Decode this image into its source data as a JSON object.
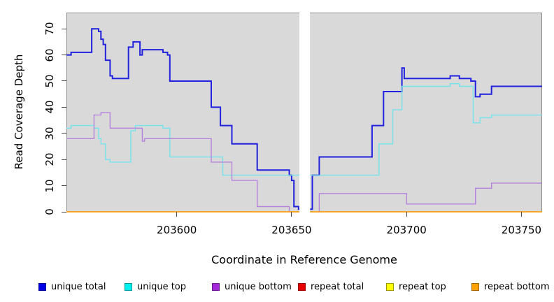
{
  "figure": {
    "xlabel": "Coordinate in Reference Genome",
    "ylabel": "Read Coverage Depth"
  },
  "legend": {
    "items": [
      {
        "label": "unique total",
        "color": "#0000E6",
        "border": "#000099"
      },
      {
        "label": "unique top",
        "color": "#00F0F0",
        "border": "#009999"
      },
      {
        "label": "unique bottom",
        "color": "#A228D8",
        "border": "#661A8C"
      },
      {
        "label": "repeat total",
        "color": "#E60000",
        "border": "#990000"
      },
      {
        "label": "repeat top",
        "color": "#FFFF00",
        "border": "#999900"
      },
      {
        "label": "repeat bottom",
        "color": "#FFA200",
        "border": "#996600"
      }
    ],
    "positions_x": [
      55,
      178,
      303,
      426,
      552,
      674
    ]
  },
  "chart_data": {
    "type": "line",
    "step": true,
    "title": "",
    "xlabel": "Coordinate in Reference Genome",
    "ylabel": "Read Coverage Depth",
    "xlim": [
      203552,
      203759
    ],
    "ylim": [
      0,
      76.2
    ],
    "x_ticks": [
      203600,
      203650,
      203700,
      203750
    ],
    "y_ticks": [
      0,
      10,
      20,
      30,
      40,
      50,
      60,
      70
    ],
    "grid": false,
    "plot_bg": "#D9D9D9",
    "border_color": "#8C8C8C",
    "gap_x": [
      203653.4,
      203658
    ],
    "legend_position": "bottom",
    "series": [
      {
        "name": "unique total",
        "color": "#2121DE",
        "width": 2,
        "segments": [
          {
            "end": 203653.4,
            "points": [
              [
                203552,
                60
              ],
              [
                203554,
                61
              ],
              [
                203563,
                70
              ],
              [
                203566,
                69
              ],
              [
                203567,
                66
              ],
              [
                203568,
                64
              ],
              [
                203569,
                58
              ],
              [
                203571,
                52
              ],
              [
                203572,
                51
              ],
              [
                203579,
                63
              ],
              [
                203581,
                65
              ],
              [
                203584,
                60
              ],
              [
                203585,
                62
              ],
              [
                203594,
                61
              ],
              [
                203596,
                60
              ],
              [
                203597,
                50
              ],
              [
                203615,
                40
              ],
              [
                203619,
                33
              ],
              [
                203624,
                26
              ],
              [
                203635,
                16
              ],
              [
                203649,
                14
              ],
              [
                203650,
                12
              ],
              [
                203651,
                2
              ],
              [
                203653,
                1
              ]
            ]
          },
          {
            "end": 203759,
            "points": [
              [
                203658,
                1
              ],
              [
                203659,
                14
              ],
              [
                203662,
                21
              ],
              [
                203685,
                33
              ],
              [
                203690,
                46
              ],
              [
                203698,
                55
              ],
              [
                203699,
                51
              ],
              [
                203719,
                52
              ],
              [
                203723,
                51
              ],
              [
                203728,
                50
              ],
              [
                203730,
                44
              ],
              [
                203732,
                45
              ],
              [
                203737,
                48
              ]
            ]
          }
        ]
      },
      {
        "name": "unique top",
        "color": "#74E3EA",
        "width": 1.4,
        "segments": [
          {
            "end": 203653.4,
            "points": [
              [
                203552,
                32
              ],
              [
                203554,
                33
              ],
              [
                203564,
                32
              ],
              [
                203566,
                28
              ],
              [
                203567,
                26
              ],
              [
                203569,
                20
              ],
              [
                203571,
                19
              ],
              [
                203580,
                31
              ],
              [
                203582,
                33
              ],
              [
                203594,
                32
              ],
              [
                203597,
                21
              ],
              [
                203620,
                14
              ]
            ]
          },
          {
            "end": 203759,
            "points": [
              [
                203658,
                14
              ],
              [
                203688,
                26
              ],
              [
                203694,
                39
              ],
              [
                203698,
                48
              ],
              [
                203719,
                49
              ],
              [
                203723,
                48
              ],
              [
                203729,
                34
              ],
              [
                203732,
                36
              ],
              [
                203737,
                37
              ]
            ]
          }
        ]
      },
      {
        "name": "unique bottom",
        "color": "#B583DC",
        "width": 1.4,
        "segments": [
          {
            "end": 203653.4,
            "points": [
              [
                203552,
                28
              ],
              [
                203564,
                37
              ],
              [
                203567,
                38
              ],
              [
                203571,
                32
              ],
              [
                203585,
                27
              ],
              [
                203586,
                28
              ],
              [
                203615,
                19
              ],
              [
                203624,
                12
              ],
              [
                203635,
                2
              ],
              [
                203649,
                0
              ]
            ]
          },
          {
            "end": 203759,
            "points": [
              [
                203658,
                0
              ],
              [
                203662,
                7
              ],
              [
                203700,
                3
              ],
              [
                203730,
                9
              ],
              [
                203737,
                11
              ]
            ]
          }
        ]
      },
      {
        "name": "repeat total",
        "color": "#DE2121",
        "width": 1.4,
        "segments": [
          {
            "end": 203653.4,
            "points": [
              [
                203552,
                0
              ]
            ]
          },
          {
            "end": 203759,
            "points": [
              [
                203658,
                0
              ]
            ]
          }
        ]
      },
      {
        "name": "repeat top",
        "color": "#F0F021",
        "width": 1.4,
        "segments": [
          {
            "end": 203653.4,
            "points": [
              [
                203552,
                0
              ]
            ]
          },
          {
            "end": 203759,
            "points": [
              [
                203658,
                0
              ]
            ]
          }
        ]
      },
      {
        "name": "repeat bottom",
        "color": "#FFA520",
        "width": 1.5,
        "segments": [
          {
            "end": 203653.4,
            "points": [
              [
                203552,
                0
              ]
            ]
          },
          {
            "end": 203759,
            "points": [
              [
                203658,
                0
              ]
            ]
          }
        ]
      }
    ]
  }
}
